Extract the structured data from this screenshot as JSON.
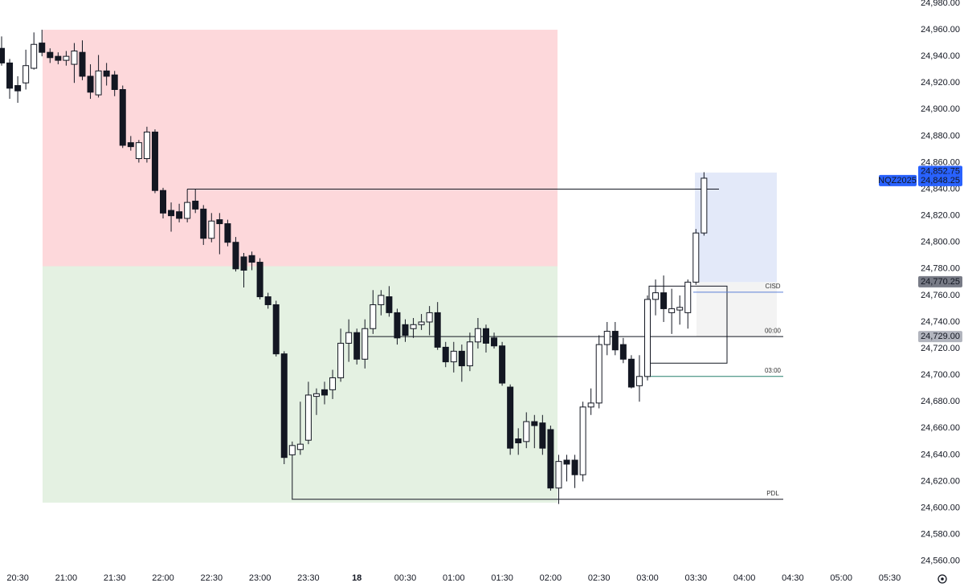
{
  "chart_data": {
    "type": "candlestick",
    "symbol": "NQZ2025",
    "ylim": [
      24555,
      24982.4
    ],
    "yticks": [
      {
        "value": 24560,
        "label": "24,560.00"
      },
      {
        "value": 24580,
        "label": "24,580.00"
      },
      {
        "value": 24600,
        "label": "24,600.00"
      },
      {
        "value": 24620,
        "label": "24,620.00"
      },
      {
        "value": 24640,
        "label": "24,640.00"
      },
      {
        "value": 24660,
        "label": "24,660.00"
      },
      {
        "value": 24680,
        "label": "24,680.00"
      },
      {
        "value": 24700,
        "label": "24,700.00"
      },
      {
        "value": 24720,
        "label": "24,720.00"
      },
      {
        "value": 24740,
        "label": "24,740.00"
      },
      {
        "value": 24760,
        "label": "24,760.00"
      },
      {
        "value": 24780,
        "label": "24,780.00"
      },
      {
        "value": 24800,
        "label": "24,800.00"
      },
      {
        "value": 24820,
        "label": "24,820.00"
      },
      {
        "value": 24840,
        "label": "24,840.00"
      },
      {
        "value": 24860,
        "label": "24,860.00"
      },
      {
        "value": 24880,
        "label": "24,880.00"
      },
      {
        "value": 24900,
        "label": "24,900.00"
      },
      {
        "value": 24920,
        "label": "24,920.00"
      },
      {
        "value": 24940,
        "label": "24,940.00"
      },
      {
        "value": 24960,
        "label": "24,960.00"
      },
      {
        "value": 24980,
        "label": "24,980.00"
      }
    ],
    "xticks": [
      "20:30",
      "21:00",
      "21:30",
      "22:00",
      "22:30",
      "23:00",
      "23:30",
      "18",
      "00:30",
      "01:00",
      "01:30",
      "02:00",
      "02:30",
      "03:00",
      "03:30",
      "04:00",
      "04:30",
      "05:00",
      "05:30"
    ],
    "open": [
      24946,
      24935,
      24918,
      24920,
      24931,
      24950,
      24943,
      24940,
      24937,
      24934,
      24943,
      24925,
      24911,
      24929,
      24926,
      24915,
      24875,
      24863,
      24863,
      24883,
      24839,
      24824,
      24823,
      24818,
      24831,
      24825,
      24803,
      24817,
      24814,
      24800,
      24789,
      24790,
      24785,
      24759,
      24753,
      24716,
      24640,
      24644,
      24651,
      24684,
      24689,
      24689,
      24698,
      24724,
      24732,
      24712,
      24735,
      24753,
      24759,
      24747,
      24738,
      24735,
      24738,
      24740,
      24747,
      24721,
      24710,
      24718,
      24707,
      24725,
      24735,
      24728,
      24722,
      24691,
      24652,
      24650,
      24665,
      24664,
      24659,
      24615,
      24636,
      24636,
      24625,
      24676,
      24679,
      24723,
      24733,
      24723,
      24712,
      24692,
      24699,
      24757,
      24762,
      24747,
      24749,
      24747,
      24770,
      24807
    ],
    "high": [
      24955,
      24938,
      24925,
      24945,
      24958,
      24960,
      24946,
      24943,
      24944,
      24950,
      24952,
      24934,
      24941,
      24935,
      24929,
      24918,
      24880,
      24877,
      24887,
      24885,
      24841,
      24830,
      24829,
      24840,
      24840,
      24828,
      24822,
      24822,
      24817,
      24804,
      24792,
      24793,
      24788,
      24762,
      24756,
      24718,
      24650,
      24680,
      24695,
      24690,
      24695,
      24704,
      24735,
      24742,
      24735,
      24742,
      24764,
      24764,
      24767,
      24750,
      24742,
      24743,
      24746,
      24752,
      24755,
      24725,
      24725,
      24723,
      24732,
      24743,
      24738,
      24732,
      24725,
      24693,
      24660,
      24672,
      24670,
      24670,
      24662,
      24640,
      24640,
      24640,
      24680,
      24690,
      24730,
      24740,
      24740,
      24728,
      24715,
      24715,
      24760,
      24772,
      24775,
      24765,
      24760,
      24772,
      24810,
      24852.75
    ],
    "low": [
      24933,
      24908,
      24905,
      24915,
      24930,
      24940,
      24935,
      24934,
      24933,
      24920,
      24922,
      24908,
      24909,
      24918,
      24910,
      24871,
      24869,
      24860,
      24860,
      24837,
      24818,
      24808,
      24815,
      24815,
      24822,
      24798,
      24800,
      24791,
      24797,
      24778,
      24766,
      24779,
      24757,
      24750,
      24714,
      24633,
      24607,
      24640,
      24648,
      24670,
      24678,
      24682,
      24695,
      24710,
      24708,
      24705,
      24731,
      24745,
      24744,
      24723,
      24725,
      24728,
      24734,
      24730,
      24719,
      24706,
      24702,
      24695,
      24703,
      24720,
      24717,
      24720,
      24692,
      24640,
      24640,
      24645,
      24645,
      24640,
      24613,
      24603,
      24620,
      24615,
      24620,
      24670,
      24675,
      24715,
      24715,
      24709,
      24690,
      24680,
      24696,
      24745,
      24740,
      24731,
      24738,
      24735,
      24768,
      24805
    ],
    "close": [
      24935,
      24916,
      24914,
      24933,
      24949,
      24943,
      24939,
      24937,
      24940,
      24944,
      24925,
      24913,
      24929,
      24925,
      24915,
      24873,
      24872,
      24875,
      24883,
      24839,
      24822,
      24820,
      24818,
      24830,
      24825,
      24803,
      24816,
      24814,
      24800,
      24780,
      24779,
      24785,
      24759,
      24753,
      24716,
      24638,
      24647,
      24648,
      24685,
      24686,
      24685,
      24698,
      24724,
      24732,
      24712,
      24735,
      24753,
      24760,
      24747,
      24728,
      24730,
      24738,
      24740,
      24747,
      24721,
      24710,
      24718,
      24707,
      24725,
      24735,
      24724,
      24722,
      24694,
      24645,
      24649,
      24665,
      24662,
      24645,
      24615,
      24635,
      24633,
      24625,
      24676,
      24679,
      24723,
      24733,
      24719,
      24712,
      24691,
      24699,
      24757,
      24762,
      24750,
      24750,
      24751,
      24770,
      24807,
      24848.25
    ],
    "zones": [
      {
        "low": 24782,
        "high": 24960,
        "color": "#fdd8db"
      },
      {
        "low": 24604,
        "high": 24782,
        "color": "#e4f1e2"
      },
      {
        "low": 24770,
        "high": 24852.5,
        "color": "#e3e9f9"
      },
      {
        "low": 24729,
        "high": 24770,
        "color": "#f3f3f3"
      },
      {
        "low": 24709,
        "high": 24767,
        "color": "none"
      }
    ],
    "levels": [
      {
        "value": 24840,
        "color": "#131722"
      },
      {
        "name": "CISD",
        "value": 24762.4,
        "color": "#5b7fd6"
      },
      {
        "name": "00:00",
        "value": 24729,
        "color": "#131722"
      },
      {
        "name": "03:00",
        "value": 24699,
        "color": "#26806e"
      },
      {
        "name": "PDL",
        "value": 24606.5,
        "color": "#131722"
      }
    ],
    "price_labels": [
      {
        "value": 24852.75,
        "label": "24,852.75",
        "color": "#2962ff"
      },
      {
        "value": 24848.25,
        "label": "24,848.25",
        "color": "#2962ff"
      },
      {
        "value": 24770.25,
        "label": "24,770.25",
        "color": "#787b86"
      },
      {
        "value": 24729.0,
        "label": "24,729.00",
        "color": "#b2b5be"
      }
    ]
  }
}
